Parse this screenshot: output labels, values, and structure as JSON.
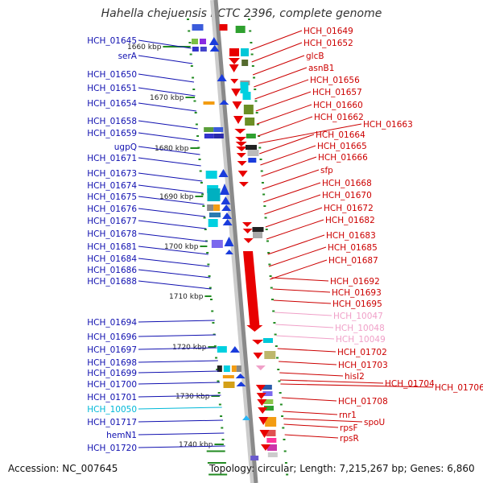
{
  "title": "Hahella chejuensis KCTC 2396, complete genome",
  "footer": {
    "accession": "Accession: NC_007645",
    "stats": "Topology: circular; Length: 7,215,267 bp; Genes: 6,860"
  },
  "colors": {
    "left_label": "#1010b0",
    "right_label": "#cc0000",
    "pink_label": "#f0a0c8",
    "cyan_label": "#00b8d8",
    "axis": "#999999",
    "tick": "#228b22",
    "forward_strand": "#1a3cdc",
    "reverse_strand": "#e80000"
  },
  "kbp_ticks": [
    "1660 kbp",
    "1670 kbp",
    "1680 kbp",
    "1690 kbp",
    "1700 kbp",
    "1710 kbp",
    "1720 kbp",
    "1730 kbp",
    "1740 kbp"
  ],
  "left_genes": [
    "HCH_01645",
    "serA",
    "HCH_01650",
    "HCH_01651",
    "HCH_01654",
    "HCH_01658",
    "HCH_01659",
    "ugpQ",
    "HCH_01671",
    "HCH_01673",
    "HCH_01674",
    "HCH_01675",
    "HCH_01676",
    "HCH_01677",
    "HCH_01678",
    "HCH_01681",
    "HCH_01684",
    "HCH_01686",
    "HCH_01688",
    "HCH_01694",
    "HCH_01696",
    "HCH_01697",
    "HCH_01698",
    "HCH_01699",
    "HCH_01700",
    "HCH_01701",
    "HCH_10050",
    "HCH_01717",
    "hemN1",
    "HCH_01720"
  ],
  "right_genes": [
    "HCH_01649",
    "HCH_01652",
    "glcB",
    "asnB1",
    "HCH_01656",
    "HCH_01657",
    "HCH_01660",
    "HCH_01662",
    "HCH_01663",
    "HCH_01664",
    "HCH_01665",
    "HCH_01666",
    "sfp",
    "HCH_01668",
    "HCH_01670",
    "HCH_01672",
    "HCH_01682",
    "HCH_01683",
    "HCH_01685",
    "HCH_01687",
    "HCH_01692",
    "HCH_01693",
    "HCH_01695",
    "HCH_10047",
    "HCH_10048",
    "HCH_10049",
    "HCH_01702",
    "HCH_01703",
    "hisI2",
    "HCH_01704",
    "HCH_01706",
    "HCH_01708",
    "rnr1",
    "spoU",
    "rpsF",
    "rpsR"
  ]
}
